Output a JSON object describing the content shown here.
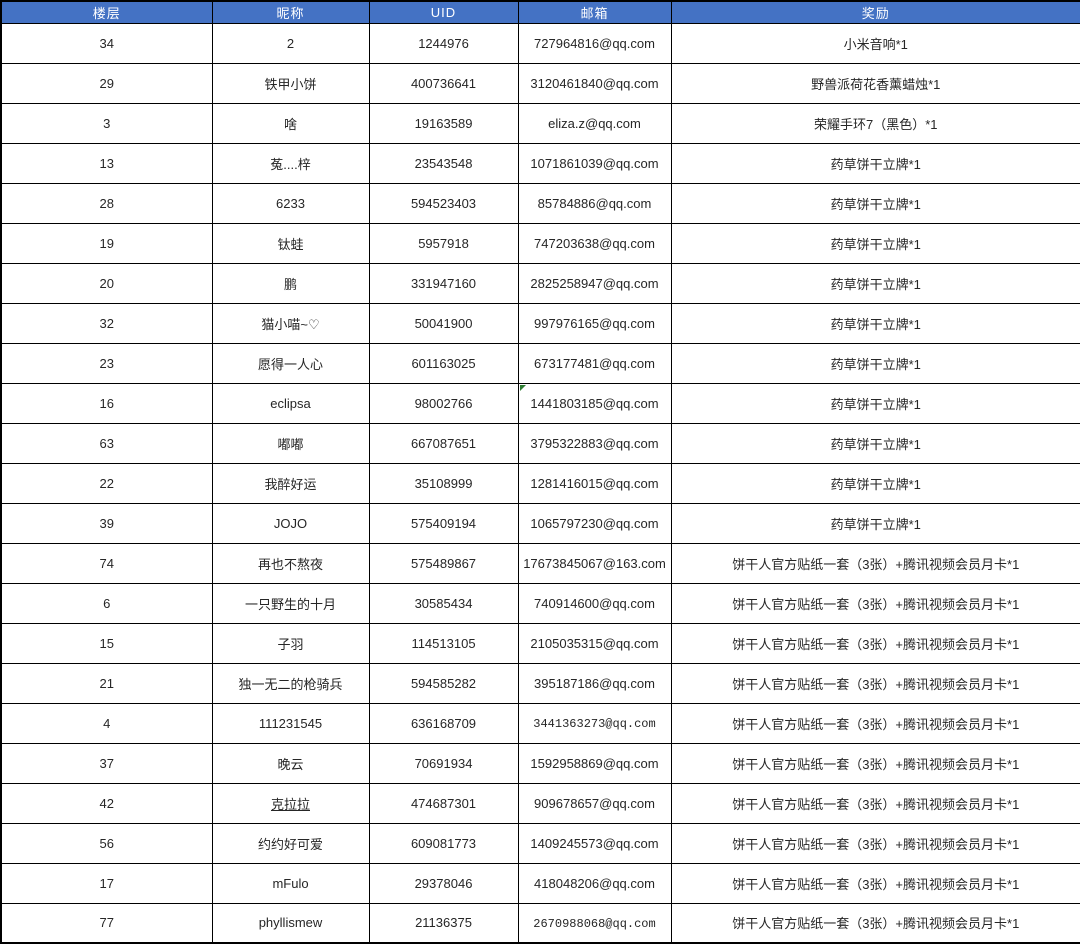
{
  "colors": {
    "header_bg": "#4472C4",
    "header_text": "#FFFFFF",
    "border": "#000000",
    "cell_text": "#262626",
    "flag_green": "#2E7D32"
  },
  "table": {
    "columns": [
      {
        "key": "floor",
        "label": "楼层"
      },
      {
        "key": "nickname",
        "label": "昵称"
      },
      {
        "key": "uid",
        "label": "UID"
      },
      {
        "key": "email",
        "label": "邮箱"
      },
      {
        "key": "reward",
        "label": "奖励"
      }
    ],
    "rows": [
      {
        "floor": "34",
        "nickname": "2",
        "uid": "1244976",
        "email": "727964816@qq.com",
        "reward": "小米音响*1"
      },
      {
        "floor": "29",
        "nickname": "铁甲小饼",
        "uid": "400736641",
        "email": "3120461840@qq.com",
        "reward": "野兽派荷花香薰蜡烛*1"
      },
      {
        "floor": "3",
        "nickname": "啥",
        "uid": "19163589",
        "email": "eliza.z@qq.com",
        "reward": "荣耀手环7（黑色）*1"
      },
      {
        "floor": "13",
        "nickname": "菟....梓",
        "uid": "23543548",
        "email": "1071861039@qq.com",
        "reward": "药草饼干立牌*1"
      },
      {
        "floor": "28",
        "nickname": "6233",
        "uid": "594523403",
        "email": "85784886@qq.com",
        "reward": "药草饼干立牌*1"
      },
      {
        "floor": "19",
        "nickname": "钛蛙",
        "uid": "5957918",
        "email": "747203638@qq.com",
        "reward": "药草饼干立牌*1"
      },
      {
        "floor": "20",
        "nickname": "鹏",
        "uid": "331947160",
        "email": "2825258947@qq.com",
        "reward": "药草饼干立牌*1"
      },
      {
        "floor": "32",
        "nickname": "猫小喵~♡",
        "uid": "50041900",
        "email": "997976165@qq.com",
        "reward": "药草饼干立牌*1"
      },
      {
        "floor": "23",
        "nickname": "愿得一人心",
        "uid": "601163025",
        "email": "673177481@qq.com",
        "reward": "药草饼干立牌*1"
      },
      {
        "floor": "16",
        "nickname": "eclipsa",
        "uid": "98002766",
        "email": "1441803185@qq.com",
        "reward": "药草饼干立牌*1",
        "email_flag": true
      },
      {
        "floor": "63",
        "nickname": "嘟嘟",
        "uid": "667087651",
        "email": "3795322883@qq.com",
        "reward": "药草饼干立牌*1"
      },
      {
        "floor": "22",
        "nickname": "我醉好运",
        "uid": "35108999",
        "email": "1281416015@qq.com",
        "reward": "药草饼干立牌*1"
      },
      {
        "floor": "39",
        "nickname": "JOJO",
        "uid": "575409194",
        "email": "1065797230@qq.com",
        "reward": "药草饼干立牌*1"
      },
      {
        "floor": "74",
        "nickname": "再也不熬夜",
        "uid": "575489867",
        "email": "17673845067@163.com",
        "reward": "饼干人官方贴纸一套（3张）+腾讯视频会员月卡*1"
      },
      {
        "floor": "6",
        "nickname": "一只野生的十月",
        "uid": "30585434",
        "email": "740914600@qq.com",
        "reward": "饼干人官方贴纸一套（3张）+腾讯视频会员月卡*1"
      },
      {
        "floor": "15",
        "nickname": "子羽",
        "uid": "114513105",
        "email": "2105035315@qq.com",
        "reward": "饼干人官方贴纸一套（3张）+腾讯视频会员月卡*1"
      },
      {
        "floor": "21",
        "nickname": "独一无二的枪骑兵",
        "uid": "594585282",
        "email": "395187186@qq.com",
        "reward": "饼干人官方贴纸一套（3张）+腾讯视频会员月卡*1"
      },
      {
        "floor": "4",
        "nickname": "111231545",
        "uid": "636168709",
        "email": "3441363273@qq.com",
        "reward": "饼干人官方贴纸一套（3张）+腾讯视频会员月卡*1",
        "email_mono": true
      },
      {
        "floor": "37",
        "nickname": "晚云",
        "uid": "70691934",
        "email": "1592958869@qq.com",
        "reward": "饼干人官方贴纸一套（3张）+腾讯视频会员月卡*1"
      },
      {
        "floor": "42",
        "nickname": "克拉拉",
        "uid": "474687301",
        "email": "909678657@qq.com",
        "reward": "饼干人官方贴纸一套（3张）+腾讯视频会员月卡*1",
        "nickname_underline": true
      },
      {
        "floor": "56",
        "nickname": "约约好可爱",
        "uid": "609081773",
        "email": "1409245573@qq.com",
        "reward": "饼干人官方贴纸一套（3张）+腾讯视频会员月卡*1"
      },
      {
        "floor": "17",
        "nickname": "mFulo",
        "uid": "29378046",
        "email": "418048206@qq.com",
        "reward": "饼干人官方贴纸一套（3张）+腾讯视频会员月卡*1"
      },
      {
        "floor": "77",
        "nickname": "phyllismew",
        "uid": "21136375",
        "email": "2670988068@qq.com",
        "reward": "饼干人官方贴纸一套（3张）+腾讯视频会员月卡*1",
        "email_mono": true
      }
    ]
  }
}
